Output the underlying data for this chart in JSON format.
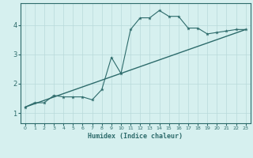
{
  "xlabel": "Humidex (Indice chaleur)",
  "bg_color": "#d6f0ef",
  "line_color": "#2d6b6b",
  "grid_color": "#b8dada",
  "x_ticks": [
    0,
    1,
    2,
    3,
    4,
    5,
    6,
    7,
    8,
    9,
    10,
    11,
    12,
    13,
    14,
    15,
    16,
    17,
    18,
    19,
    20,
    21,
    22,
    23
  ],
  "y_ticks": [
    1,
    2,
    3,
    4
  ],
  "ylim": [
    0.65,
    4.75
  ],
  "xlim": [
    -0.5,
    23.5
  ],
  "curve1_x": [
    0,
    1,
    2,
    3,
    4,
    5,
    6,
    7,
    8,
    9,
    10,
    11,
    12,
    13,
    14,
    15,
    16,
    17,
    18,
    19,
    20,
    21,
    22,
    23
  ],
  "curve1_y": [
    1.2,
    1.35,
    1.35,
    1.6,
    1.55,
    1.55,
    1.55,
    1.45,
    1.8,
    2.9,
    2.35,
    3.85,
    4.25,
    4.25,
    4.5,
    4.3,
    4.3,
    3.9,
    3.9,
    3.7,
    3.75,
    3.8,
    3.85,
    3.85
  ],
  "curve2_x": [
    0,
    23
  ],
  "curve2_y": [
    1.2,
    3.85
  ]
}
